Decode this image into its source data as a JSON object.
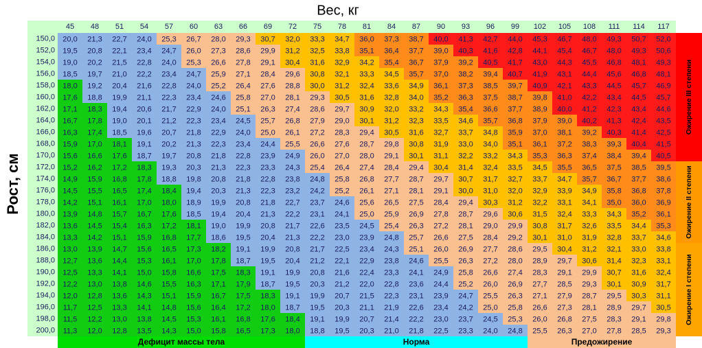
{
  "title": "Вес, кг",
  "y_label": "Рост, см",
  "weights": [
    45,
    48,
    51,
    54,
    57,
    60,
    63,
    66,
    69,
    72,
    75,
    78,
    81,
    84,
    87,
    90,
    93,
    96,
    99,
    102,
    105,
    108,
    111,
    114,
    117
  ],
  "heights": [
    "150,0",
    "152,0",
    "154,0",
    "156,0",
    "158,0",
    "160,0",
    "162,0",
    "164,0",
    "166,0",
    "168,0",
    "170,0",
    "172,0",
    "174,0",
    "176,0",
    "178,0",
    "180,0",
    "182,0",
    "184,0",
    "186,0",
    "188,0",
    "190,0",
    "192,0",
    "194,0",
    "196,0",
    "198,0",
    "200,0"
  ],
  "rows": [
    [
      "20,0",
      "21,3",
      "22,7",
      "24,0",
      "25,3",
      "26,7",
      "28,0",
      "29,3",
      "30,7",
      "32,0",
      "33,3",
      "34,7",
      "36,0",
      "37,3",
      "38,7",
      "40,0",
      "41,3",
      "42,7",
      "44,0",
      "45,3",
      "46,7",
      "48,0",
      "49,3",
      "50,7",
      "52,0"
    ],
    [
      "19,5",
      "20,8",
      "22,1",
      "23,4",
      "24,7",
      "26,0",
      "27,3",
      "28,6",
      "29,9",
      "31,2",
      "32,5",
      "33,8",
      "35,1",
      "36,4",
      "37,7",
      "39,0",
      "40,3",
      "41,6",
      "42,8",
      "44,1",
      "45,4",
      "46,7",
      "48,0",
      "49,3",
      "50,6"
    ],
    [
      "19,0",
      "20,2",
      "21,5",
      "22,8",
      "24,0",
      "25,3",
      "26,6",
      "27,8",
      "29,1",
      "30,4",
      "31,6",
      "32,9",
      "34,2",
      "35,4",
      "36,7",
      "37,9",
      "39,2",
      "40,5",
      "41,7",
      "43,0",
      "44,3",
      "45,5",
      "46,8",
      "48,1",
      "49,3"
    ],
    [
      "18,5",
      "19,7",
      "21,0",
      "22,2",
      "23,4",
      "24,7",
      "25,9",
      "27,1",
      "28,4",
      "29,6",
      "30,8",
      "32,1",
      "33,3",
      "34,5",
      "35,7",
      "37,0",
      "38,2",
      "39,4",
      "40,7",
      "41,9",
      "43,1",
      "44,4",
      "45,6",
      "46,8",
      "48,1"
    ],
    [
      "18,0",
      "19,2",
      "20,4",
      "21,6",
      "22,8",
      "24,0",
      "25,2",
      "26,4",
      "27,6",
      "28,8",
      "30,0",
      "31,2",
      "32,4",
      "33,6",
      "34,9",
      "36,1",
      "37,3",
      "38,5",
      "39,7",
      "40,9",
      "42,1",
      "43,3",
      "44,5",
      "45,7",
      "46,9"
    ],
    [
      "17,6",
      "18,8",
      "19,9",
      "21,1",
      "22,3",
      "23,4",
      "24,6",
      "25,8",
      "27,0",
      "28,1",
      "29,3",
      "30,5",
      "31,6",
      "32,8",
      "34,0",
      "35,2",
      "36,3",
      "37,5",
      "38,7",
      "39,8",
      "41,0",
      "42,2",
      "43,4",
      "44,5",
      "45,7"
    ],
    [
      "17,1",
      "18,3",
      "19,4",
      "20,6",
      "21,7",
      "22,9",
      "24,0",
      "25,1",
      "26,3",
      "27,4",
      "28,6",
      "29,7",
      "30,9",
      "32,0",
      "33,2",
      "34,3",
      "35,4",
      "36,6",
      "37,7",
      "38,9",
      "40,0",
      "41,2",
      "42,3",
      "43,4",
      "44,6"
    ],
    [
      "16,7",
      "17,8",
      "19,0",
      "20,1",
      "21,2",
      "22,3",
      "23,4",
      "24,5",
      "25,7",
      "26,8",
      "27,9",
      "29,0",
      "30,1",
      "31,2",
      "32,3",
      "33,5",
      "34,6",
      "35,7",
      "36,8",
      "37,9",
      "39,0",
      "40,2",
      "41,3",
      "42,4",
      "43,5"
    ],
    [
      "16,3",
      "17,4",
      "18,5",
      "19,6",
      "20,7",
      "21,8",
      "22,9",
      "24,0",
      "25,0",
      "26,1",
      "27,2",
      "28,3",
      "29,4",
      "30,5",
      "31,6",
      "32,7",
      "33,7",
      "34,8",
      "35,9",
      "37,0",
      "38,1",
      "39,2",
      "40,3",
      "41,4",
      "42,5"
    ],
    [
      "15,9",
      "17,0",
      "18,1",
      "19,1",
      "20,2",
      "21,3",
      "22,3",
      "23,4",
      "24,4",
      "25,5",
      "26,6",
      "27,6",
      "28,7",
      "29,8",
      "30,8",
      "31,9",
      "33,0",
      "34,0",
      "35,1",
      "36,1",
      "37,2",
      "38,3",
      "39,3",
      "40,4",
      "41,5"
    ],
    [
      "15,6",
      "16,6",
      "17,6",
      "18,7",
      "19,7",
      "20,8",
      "21,8",
      "22,8",
      "23,9",
      "24,9",
      "26,0",
      "27,0",
      "28,0",
      "29,1",
      "30,1",
      "31,1",
      "32,2",
      "33,2",
      "34,3",
      "35,3",
      "36,3",
      "37,4",
      "38,4",
      "39,4",
      "40,5"
    ],
    [
      "15,2",
      "16,2",
      "17,2",
      "18,3",
      "19,3",
      "20,3",
      "21,3",
      "22,3",
      "23,3",
      "24,3",
      "25,4",
      "26,4",
      "27,4",
      "28,4",
      "29,4",
      "30,4",
      "31,4",
      "32,4",
      "33,5",
      "34,5",
      "35,5",
      "36,5",
      "37,5",
      "38,5",
      "39,5"
    ],
    [
      "14,9",
      "15,9",
      "16,8",
      "17,8",
      "18,8",
      "19,8",
      "20,8",
      "21,8",
      "22,8",
      "23,8",
      "24,8",
      "25,8",
      "26,8",
      "27,7",
      "28,7",
      "29,7",
      "30,7",
      "31,7",
      "32,7",
      "33,7",
      "34,7",
      "35,7",
      "36,7",
      "37,7",
      "38,6"
    ],
    [
      "14,5",
      "15,5",
      "16,5",
      "17,4",
      "18,4",
      "19,4",
      "20,3",
      "21,3",
      "22,3",
      "23,2",
      "24,2",
      "25,2",
      "26,1",
      "27,1",
      "28,1",
      "29,1",
      "30,0",
      "31,0",
      "32,0",
      "32,9",
      "33,9",
      "34,9",
      "35,8",
      "36,8",
      "37,8"
    ],
    [
      "14,2",
      "15,1",
      "16,1",
      "17,0",
      "18,0",
      "18,9",
      "19,9",
      "20,8",
      "21,8",
      "22,7",
      "23,7",
      "24,6",
      "25,6",
      "26,5",
      "27,5",
      "28,4",
      "29,4",
      "30,3",
      "31,2",
      "32,2",
      "33,1",
      "34,1",
      "35,0",
      "36,0",
      "36,9"
    ],
    [
      "13,9",
      "14,8",
      "15,7",
      "16,7",
      "17,6",
      "18,5",
      "19,4",
      "20,4",
      "21,3",
      "22,2",
      "23,1",
      "24,1",
      "25,0",
      "25,9",
      "26,9",
      "27,8",
      "28,7",
      "29,6",
      "30,6",
      "31,5",
      "32,4",
      "33,3",
      "34,3",
      "35,2",
      "36,1"
    ],
    [
      "13,6",
      "14,5",
      "15,4",
      "16,3",
      "17,2",
      "18,1",
      "19,0",
      "19,9",
      "20,8",
      "21,7",
      "22,6",
      "23,5",
      "24,5",
      "25,4",
      "26,3",
      "27,2",
      "28,1",
      "29,0",
      "29,9",
      "30,8",
      "31,7",
      "32,6",
      "33,5",
      "34,4",
      "35,3"
    ],
    [
      "13,3",
      "14,2",
      "15,1",
      "15,9",
      "16,8",
      "17,7",
      "18,6",
      "19,5",
      "20,4",
      "21,3",
      "22,2",
      "23,0",
      "23,9",
      "24,8",
      "25,7",
      "26,6",
      "27,5",
      "28,4",
      "29,2",
      "30,1",
      "31,0",
      "31,9",
      "32,8",
      "33,7",
      "34,6"
    ],
    [
      "13,0",
      "13,9",
      "14,7",
      "15,6",
      "16,5",
      "17,3",
      "18,2",
      "19,1",
      "19,9",
      "20,8",
      "21,7",
      "22,5",
      "23,4",
      "24,3",
      "25,1",
      "26,0",
      "26,9",
      "27,7",
      "28,6",
      "29,5",
      "30,4",
      "31,2",
      "32,1",
      "33,0",
      "33,8"
    ],
    [
      "12,7",
      "13,6",
      "14,4",
      "15,3",
      "16,1",
      "17,0",
      "17,8",
      "18,7",
      "19,5",
      "20,4",
      "21,2",
      "22,1",
      "22,9",
      "23,8",
      "24,6",
      "25,5",
      "26,3",
      "27,2",
      "28,0",
      "28,9",
      "29,7",
      "30,6",
      "31,4",
      "32,3",
      "33,1"
    ],
    [
      "12,5",
      "13,3",
      "14,1",
      "15,0",
      "15,8",
      "16,6",
      "17,5",
      "18,3",
      "19,1",
      "19,9",
      "20,8",
      "21,6",
      "22,4",
      "23,3",
      "24,1",
      "24,9",
      "25,8",
      "26,6",
      "27,4",
      "28,3",
      "29,1",
      "29,9",
      "30,7",
      "31,6",
      "32,4"
    ],
    [
      "12,2",
      "13,0",
      "13,8",
      "14,6",
      "15,5",
      "16,3",
      "17,1",
      "17,9",
      "18,7",
      "19,5",
      "20,3",
      "21,2",
      "22,0",
      "22,8",
      "23,6",
      "24,4",
      "25,2",
      "26,0",
      "26,9",
      "27,7",
      "28,5",
      "29,3",
      "30,1",
      "30,9",
      "31,7"
    ],
    [
      "12,0",
      "12,8",
      "13,6",
      "14,3",
      "15,1",
      "15,9",
      "16,7",
      "17,5",
      "18,3",
      "19,1",
      "19,9",
      "20,7",
      "21,5",
      "22,3",
      "23,1",
      "23,9",
      "24,7",
      "25,5",
      "26,3",
      "27,1",
      "27,9",
      "28,7",
      "29,5",
      "30,3",
      "31,1"
    ],
    [
      "11,7",
      "12,5",
      "13,3",
      "14,1",
      "14,8",
      "15,6",
      "16,4",
      "17,2",
      "18,0",
      "18,7",
      "19,5",
      "20,3",
      "21,1",
      "21,9",
      "22,6",
      "23,4",
      "24,2",
      "25,0",
      "25,8",
      "26,6",
      "27,3",
      "28,1",
      "28,9",
      "29,7",
      "30,5"
    ],
    [
      "11,5",
      "12,2",
      "13,0",
      "13,8",
      "14,5",
      "15,3",
      "16,1",
      "16,8",
      "17,6",
      "18,4",
      "19,1",
      "19,9",
      "20,7",
      "21,4",
      "22,2",
      "23,0",
      "23,7",
      "24,5",
      "25,3",
      "26,0",
      "26,8",
      "27,5",
      "28,3",
      "29,1",
      "29,8"
    ],
    [
      "11,3",
      "12,0",
      "12,8",
      "13,5",
      "14,3",
      "15,0",
      "15,8",
      "16,5",
      "17,3",
      "18,0",
      "18,8",
      "19,5",
      "20,3",
      "21,0",
      "21,8",
      "22,5",
      "23,3",
      "24,0",
      "24,8",
      "25,5",
      "26,3",
      "27,0",
      "27,8",
      "28,5",
      "29,3"
    ]
  ],
  "bottom_labels": [
    "Дефицит массы тела",
    "Норма",
    "Предожирение"
  ],
  "side_labels": [
    "Ожирение III степени",
    "Ожирение II степени",
    "Ожирение I степени"
  ]
}
